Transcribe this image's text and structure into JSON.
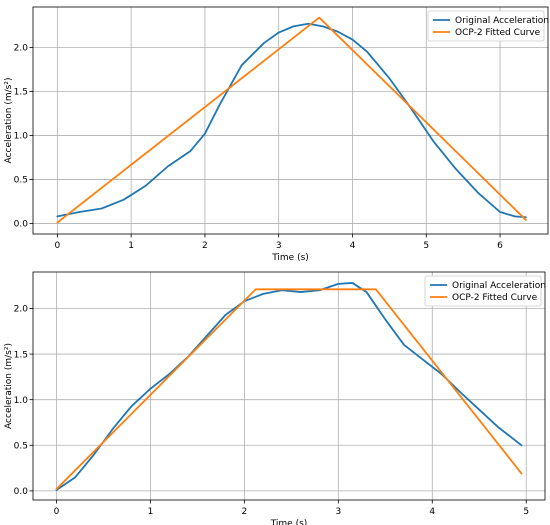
{
  "chart_data": [
    {
      "type": "line",
      "xlabel": "Time (s)",
      "ylabel": "Acceleration (m/s²)",
      "xlim": [
        -0.33,
        6.65
      ],
      "ylim": [
        -0.12,
        2.46
      ],
      "xticks": [
        0,
        1,
        2,
        3,
        4,
        5,
        6
      ],
      "xtick_labels": [
        "0",
        "1",
        "2",
        "3",
        "4",
        "5",
        "6"
      ],
      "yticks": [
        0.0,
        0.5,
        1.0,
        1.5,
        2.0
      ],
      "ytick_labels": [
        "0.0",
        "0.5",
        "1.0",
        "1.5",
        "2.0"
      ],
      "grid": true,
      "legend_position": "top-right",
      "series": [
        {
          "name": "Original Acceleration",
          "color": "#1f77b4",
          "x": [
            0,
            0.3,
            0.6,
            0.9,
            1.2,
            1.5,
            1.8,
            2.0,
            2.2,
            2.5,
            2.8,
            3.0,
            3.2,
            3.4,
            3.6,
            3.8,
            4.0,
            4.2,
            4.5,
            4.8,
            5.1,
            5.4,
            5.7,
            6.0,
            6.2,
            6.35
          ],
          "y": [
            0.08,
            0.13,
            0.17,
            0.27,
            0.43,
            0.65,
            0.82,
            1.02,
            1.35,
            1.8,
            2.05,
            2.17,
            2.24,
            2.27,
            2.24,
            2.18,
            2.09,
            1.95,
            1.65,
            1.3,
            0.93,
            0.62,
            0.35,
            0.13,
            0.08,
            0.07
          ]
        },
        {
          "name": "OCP-2 Fitted Curve",
          "color": "#ff7f0e",
          "x": [
            0,
            3.55,
            6.35
          ],
          "y": [
            0.01,
            2.34,
            0.04
          ]
        }
      ]
    },
    {
      "type": "line",
      "xlabel": "Time (s)",
      "ylabel": "Acceleration (m/s²)",
      "xlim": [
        -0.25,
        5.2
      ],
      "ylim": [
        -0.1,
        2.4
      ],
      "xticks": [
        0,
        1,
        2,
        3,
        4,
        5
      ],
      "xtick_labels": [
        "0",
        "1",
        "2",
        "3",
        "4",
        "5"
      ],
      "yticks": [
        0.0,
        0.5,
        1.0,
        1.5,
        2.0
      ],
      "ytick_labels": [
        "0.0",
        "0.5",
        "1.0",
        "1.5",
        "2.0"
      ],
      "grid": true,
      "legend_position": "top-right",
      "series": [
        {
          "name": "Original Acceleration",
          "color": "#1f77b4",
          "x": [
            0,
            0.2,
            0.4,
            0.6,
            0.8,
            1.0,
            1.2,
            1.4,
            1.6,
            1.8,
            2.0,
            2.2,
            2.4,
            2.6,
            2.8,
            3.0,
            3.15,
            3.3,
            3.5,
            3.7,
            3.9,
            4.1,
            4.3,
            4.5,
            4.7,
            4.95
          ],
          "y": [
            0.01,
            0.15,
            0.4,
            0.68,
            0.93,
            1.12,
            1.28,
            1.47,
            1.7,
            1.93,
            2.08,
            2.16,
            2.2,
            2.18,
            2.2,
            2.27,
            2.28,
            2.18,
            1.88,
            1.6,
            1.44,
            1.28,
            1.08,
            0.89,
            0.7,
            0.5
          ]
        },
        {
          "name": "OCP-2 Fitted Curve",
          "color": "#ff7f0e",
          "x": [
            0,
            2.12,
            3.4,
            4.95
          ],
          "y": [
            0.02,
            2.21,
            2.21,
            0.19
          ]
        }
      ]
    }
  ]
}
